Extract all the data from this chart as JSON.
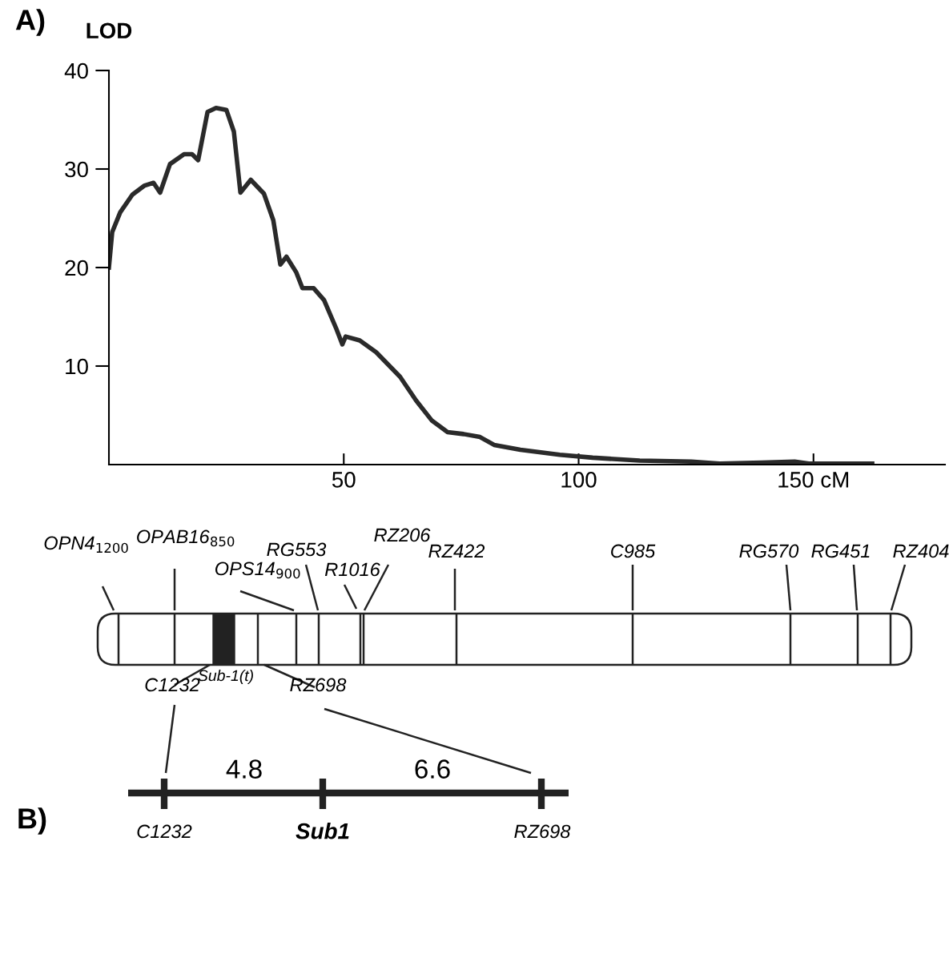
{
  "chart_data": {
    "type": "line",
    "ylabel": "LOD",
    "x": [
      0,
      0.7,
      2.4,
      5,
      7.5,
      9.5,
      10.9,
      13,
      16,
      17.7,
      19,
      21,
      22.8,
      25,
      26.6,
      28,
      30.2,
      33,
      35,
      36.5,
      37.8,
      39.9,
      41.2,
      43.6,
      45.8,
      48.4,
      49.7,
      50.4,
      53.4,
      56.9,
      62,
      65.4,
      68.7,
      72.1,
      75.5,
      79,
      82,
      87.6,
      96,
      103,
      113,
      124,
      130,
      139,
      146,
      149,
      162.5
    ],
    "series": [
      {
        "color": "#2a2a2a",
        "values": [
          20,
          23.6,
          25.6,
          27.4,
          28.3,
          28.6,
          27.6,
          30.5,
          31.5,
          31.5,
          30.9,
          35.8,
          36.2,
          36,
          33.8,
          27.6,
          28.9,
          27.5,
          24.8,
          20.3,
          21.1,
          19.5,
          17.9,
          17.9,
          16.7,
          13.8,
          12.2,
          13,
          12.6,
          11.4,
          8.9,
          6.5,
          4.5,
          3.3,
          3.1,
          2.8,
          2,
          1.5,
          1,
          0.7,
          0.4,
          0.3,
          0.1,
          0.2,
          0.3,
          0.1,
          0.1
        ]
      }
    ],
    "xlim": [
      0,
      178
    ],
    "ylim": [
      0,
      40
    ],
    "xticks": [
      50,
      100,
      {
        "value": 150,
        "label": "150 cM"
      }
    ],
    "yticks": [
      10,
      20,
      30,
      40
    ],
    "grid": false,
    "legend": false,
    "marker": "none",
    "line_style": "solid",
    "annotations": [
      "A)",
      "OPN4$_{1200}$",
      "OPAB16$_{850}$",
      "OPS14$_{900}$",
      "RG553",
      "R1016",
      "RZ206",
      "RZ422",
      "C985",
      "RG570",
      "RG451",
      "RZ404",
      "Sub-1(t)",
      "C1232",
      "RZ698",
      "B)",
      "4.8",
      "6.6",
      "C1232",
      "Sub1",
      "RZ698"
    ]
  }
}
